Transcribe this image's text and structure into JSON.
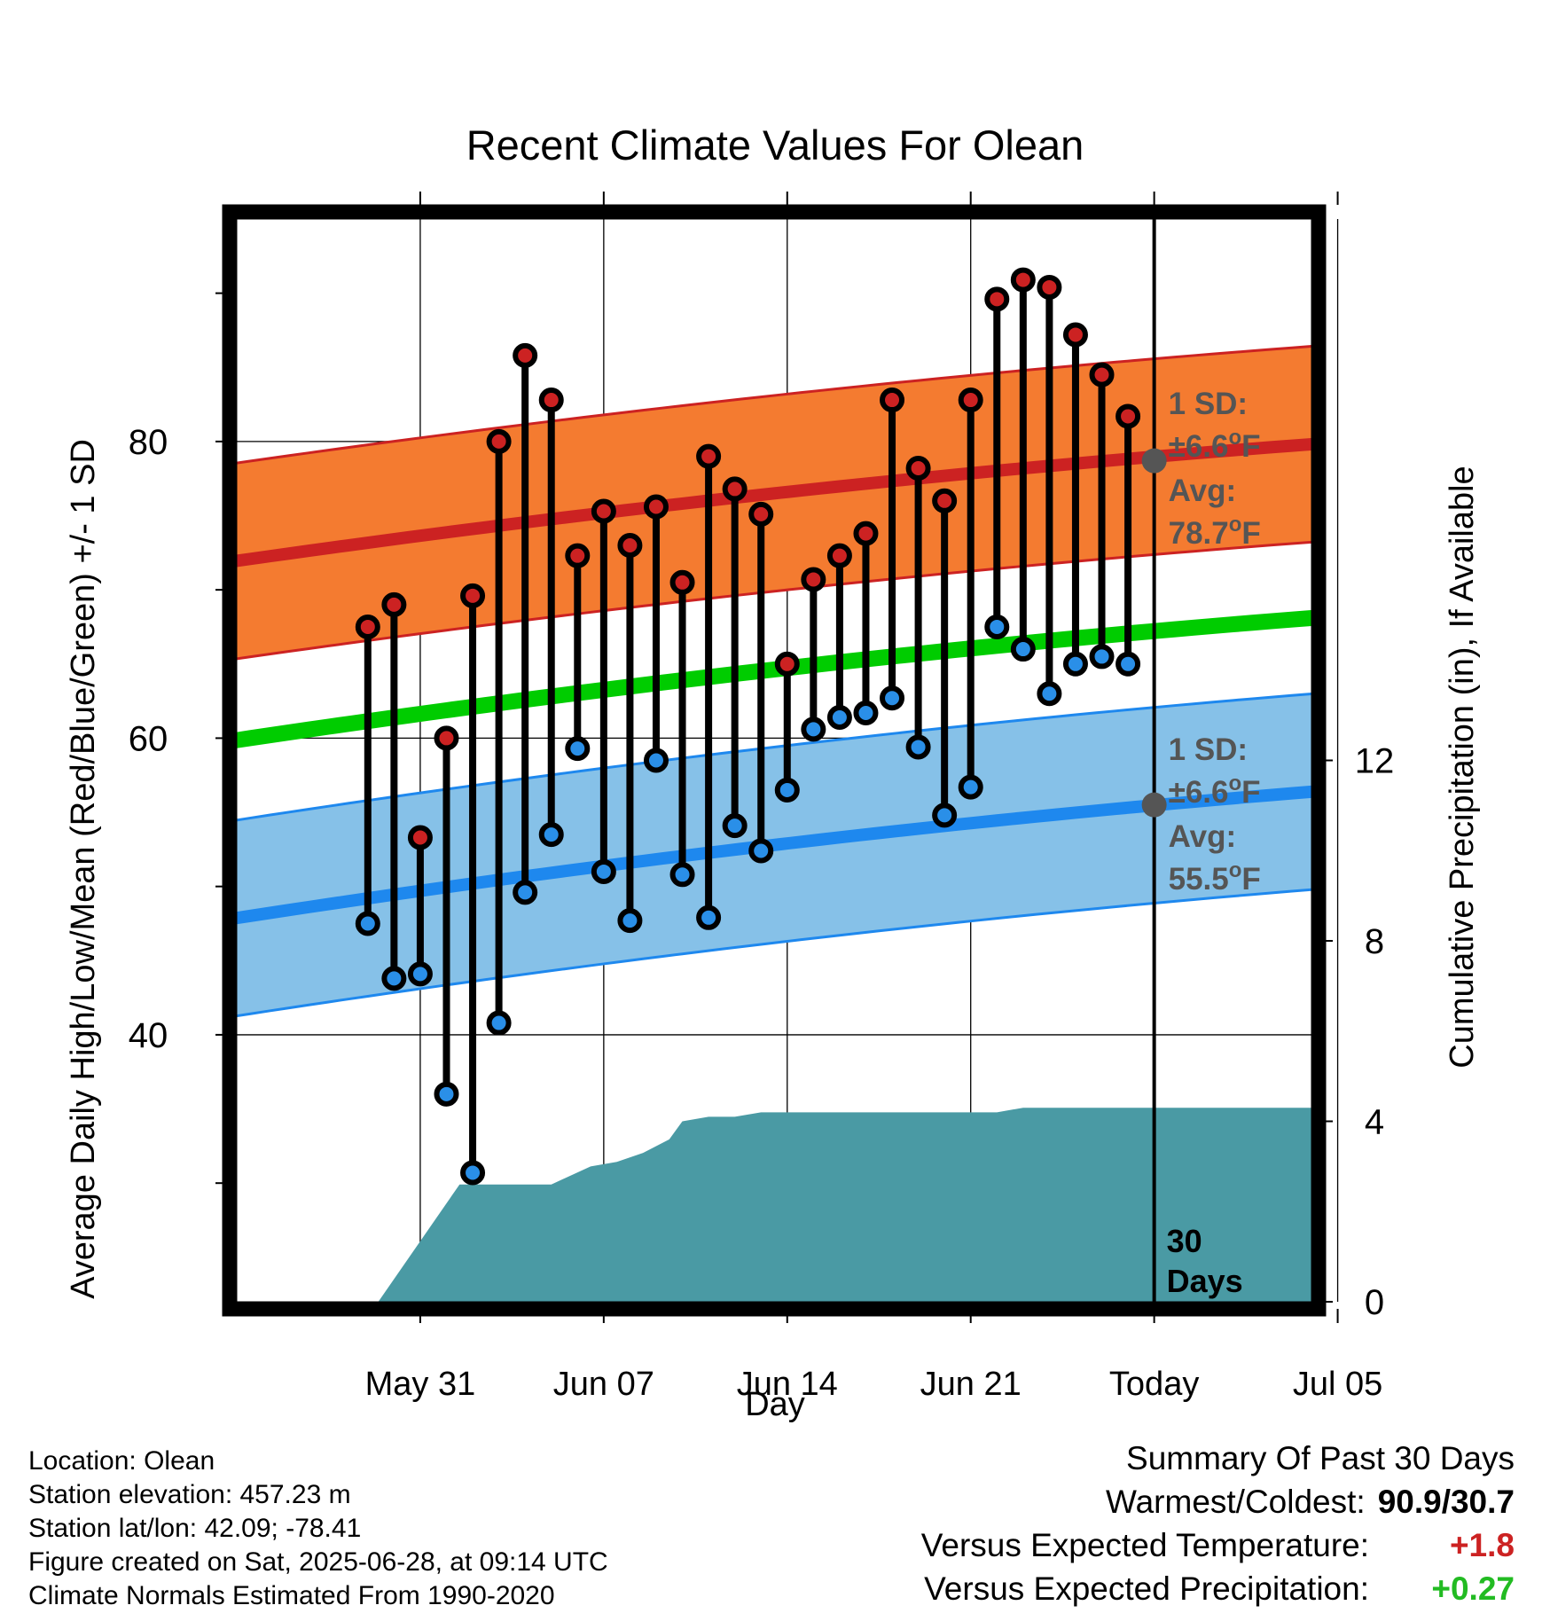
{
  "chart_data": {
    "type": "range-dot",
    "title": "Recent Climate Values For Olean",
    "xlabel": "Day",
    "ylabel_left": "Average Daily High/Low/Mean (Red/Blue/Green) +/- 1 SD",
    "ylabel_right": "Cumulative Precipitation (in), If Available",
    "left_axis": {
      "ylim": [
        22,
        95
      ],
      "ticks": [
        40,
        60,
        80
      ],
      "tick_labels": [
        "40",
        "60",
        "80"
      ],
      "minor_ticks": [
        30,
        50,
        70,
        90
      ]
    },
    "right_axis": {
      "ylim": [
        0,
        24
      ],
      "ticks": [
        0,
        4,
        8,
        12
      ],
      "tick_labels": [
        "0",
        "4",
        "8",
        "12"
      ]
    },
    "x_axis": {
      "day_range": [
        -7,
        34
      ],
      "tick_days": [
        0,
        7,
        14,
        21,
        28,
        35
      ],
      "tick_labels": [
        "May 31",
        "Jun 07",
        "Jun 14",
        "Jun 21",
        "Today",
        "Jul 05"
      ],
      "day0_date": "May 31",
      "today_label": "Today"
    },
    "days": [
      -2,
      -1,
      0,
      1,
      2,
      3,
      4,
      5,
      6,
      7,
      8,
      9,
      10,
      11,
      12,
      13,
      14,
      15,
      16,
      17,
      18,
      19,
      20,
      21,
      22,
      23,
      24,
      25,
      26,
      27
    ],
    "highs": [
      67.5,
      69.0,
      53.3,
      60.0,
      69.6,
      80.0,
      85.8,
      82.8,
      72.3,
      75.3,
      73.0,
      75.6,
      70.5,
      79.0,
      76.8,
      75.1,
      65.0,
      70.7,
      72.3,
      73.8,
      82.8,
      78.2,
      76.0,
      82.8,
      89.6,
      90.9,
      90.4,
      87.2,
      84.5,
      81.7
    ],
    "lows": [
      47.5,
      43.8,
      44.1,
      36.0,
      30.7,
      40.8,
      49.6,
      53.5,
      59.3,
      51.0,
      47.7,
      58.5,
      50.8,
      47.9,
      54.1,
      52.4,
      56.5,
      60.6,
      61.4,
      61.7,
      62.7,
      59.4,
      54.8,
      56.7,
      67.5,
      66.0,
      63.0,
      65.0,
      65.5,
      65.0
    ],
    "normal_high_mean": {
      "day_start": -8,
      "day_end": 37,
      "start": 71.7,
      "end": 80.2
    },
    "normal_low_mean": {
      "day_start": -8,
      "day_end": 37,
      "start": 47.6,
      "end": 56.8
    },
    "normal_mean": {
      "day_start": -8,
      "day_end": 37,
      "start": 59.6,
      "end": 68.5
    },
    "sd_band": 6.6,
    "high_annotation": {
      "sd_text": "1 SD:",
      "pm_text": "±6.6",
      "avg_text": "Avg:",
      "avg_value": "78.7",
      "unit_sup": "o",
      "unit": "F",
      "avg_num": 78.7
    },
    "low_annotation": {
      "sd_text": "1 SD:",
      "pm_text": "±6.6",
      "avg_text": "Avg:",
      "avg_value": "55.5",
      "unit_sup": "o",
      "unit": "F",
      "avg_num": 55.5
    },
    "today_marker": {
      "day": 28,
      "line1": "30",
      "line2": "Days"
    },
    "precip_cumulative": {
      "days": [
        -3,
        -1.6,
        1.5,
        3.5,
        5,
        6.5,
        7.5,
        8.5,
        9.5,
        10,
        11,
        12,
        13,
        14,
        15,
        16,
        17,
        18,
        19,
        20,
        21,
        22,
        23,
        24,
        25,
        26,
        27,
        28,
        29,
        34
      ],
      "values": [
        0,
        0,
        2.6,
        2.6,
        2.6,
        3.0,
        3.1,
        3.3,
        3.6,
        4.0,
        4.1,
        4.1,
        4.2,
        4.2,
        4.2,
        4.2,
        4.2,
        4.2,
        4.2,
        4.2,
        4.2,
        4.2,
        4.3,
        4.3,
        4.3,
        4.3,
        4.3,
        4.3,
        4.3,
        4.3
      ],
      "color": "#4a9aa4"
    },
    "colors": {
      "high_band": "#f47b30",
      "high_line": "#cc2222",
      "low_band": "#86c1e8",
      "low_line": "#1e88ee",
      "mean_line": "#00cc00",
      "high_dot": "#cc2222",
      "low_dot": "#2a8fe8",
      "annotation": "#555555",
      "precip": "#4a9aa4"
    }
  },
  "info": {
    "location": "Location: Olean",
    "elevation": "Station elevation: 457.23 m",
    "latlon": "Station lat/lon: 42.09; -78.41",
    "created": "Figure created on Sat, 2025-06-28, at 09:14 UTC",
    "normals": "Climate Normals Estimated From 1990-2020"
  },
  "summary": {
    "title": "Summary Of Past 30 Days",
    "warm_cold_label": "Warmest/Coldest:",
    "warm_cold_value": "90.9/30.7",
    "temp_label": "Versus Expected Temperature:",
    "temp_value": "+1.8",
    "temp_color": "#cc2222",
    "precip_label": "Versus Expected Precipitation:",
    "precip_value": "+0.27",
    "precip_color": "#22bb22"
  }
}
